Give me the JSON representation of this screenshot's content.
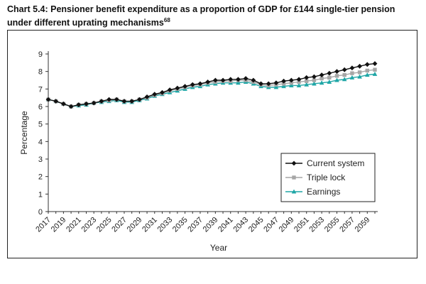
{
  "title": {
    "text": "Chart 5.4: Pensioner benefit expenditure as a proportion of GDP for £144 single-tier pension under different uprating mechanisms",
    "footnote": "68"
  },
  "colors": {
    "current_system": "#111111",
    "triple_lock": "#a6a6a6",
    "earnings": "#1fa6a6"
  },
  "chart_data": {
    "type": "line",
    "xlabel": "Year",
    "ylabel": "Percentage",
    "ylim": [
      0,
      9
    ],
    "yticks": [
      0,
      1,
      2,
      3,
      4,
      5,
      6,
      7,
      8,
      9
    ],
    "xticks": [
      "2017",
      "2019",
      "2021",
      "2023",
      "2025",
      "2027",
      "2029",
      "2031",
      "2033",
      "2035",
      "2037",
      "2039",
      "2041",
      "2043",
      "2045",
      "2047",
      "2049",
      "2051",
      "2053",
      "2055",
      "2057",
      "2059"
    ],
    "x": [
      2017,
      2018,
      2019,
      2020,
      2021,
      2022,
      2023,
      2024,
      2025,
      2026,
      2027,
      2028,
      2029,
      2030,
      2031,
      2032,
      2033,
      2034,
      2035,
      2036,
      2037,
      2038,
      2039,
      2040,
      2041,
      2042,
      2043,
      2044,
      2045,
      2046,
      2047,
      2048,
      2049,
      2050,
      2051,
      2052,
      2053,
      2054,
      2055,
      2056,
      2057,
      2058,
      2059,
      2060
    ],
    "legend_position": "bottom-right",
    "grid": false,
    "series": [
      {
        "name": "Current system",
        "marker": "diamond",
        "values": [
          6.4,
          6.3,
          6.15,
          6.0,
          6.1,
          6.15,
          6.2,
          6.3,
          6.4,
          6.4,
          6.3,
          6.3,
          6.4,
          6.55,
          6.7,
          6.8,
          6.95,
          7.05,
          7.15,
          7.25,
          7.3,
          7.4,
          7.5,
          7.5,
          7.55,
          7.55,
          7.6,
          7.5,
          7.3,
          7.3,
          7.35,
          7.45,
          7.5,
          7.55,
          7.65,
          7.7,
          7.8,
          7.9,
          8.0,
          8.1,
          8.2,
          8.3,
          8.4,
          8.45
        ]
      },
      {
        "name": "Triple lock",
        "marker": "square",
        "values": [
          6.4,
          6.3,
          6.15,
          6.0,
          6.1,
          6.15,
          6.2,
          6.3,
          6.35,
          6.4,
          6.3,
          6.3,
          6.4,
          6.5,
          6.65,
          6.75,
          6.9,
          7.0,
          7.1,
          7.2,
          7.25,
          7.35,
          7.4,
          7.45,
          7.45,
          7.5,
          7.5,
          7.4,
          7.25,
          7.2,
          7.25,
          7.3,
          7.35,
          7.4,
          7.45,
          7.5,
          7.6,
          7.65,
          7.75,
          7.8,
          7.9,
          7.95,
          8.05,
          8.1
        ]
      },
      {
        "name": "Earnings",
        "marker": "triangle",
        "values": [
          6.4,
          6.3,
          6.15,
          6.0,
          6.05,
          6.1,
          6.2,
          6.25,
          6.3,
          6.35,
          6.25,
          6.25,
          6.35,
          6.45,
          6.6,
          6.7,
          6.8,
          6.9,
          7.0,
          7.1,
          7.15,
          7.25,
          7.3,
          7.35,
          7.35,
          7.35,
          7.4,
          7.3,
          7.15,
          7.1,
          7.1,
          7.15,
          7.2,
          7.2,
          7.25,
          7.3,
          7.35,
          7.4,
          7.5,
          7.55,
          7.65,
          7.7,
          7.8,
          7.85
        ]
      }
    ]
  }
}
